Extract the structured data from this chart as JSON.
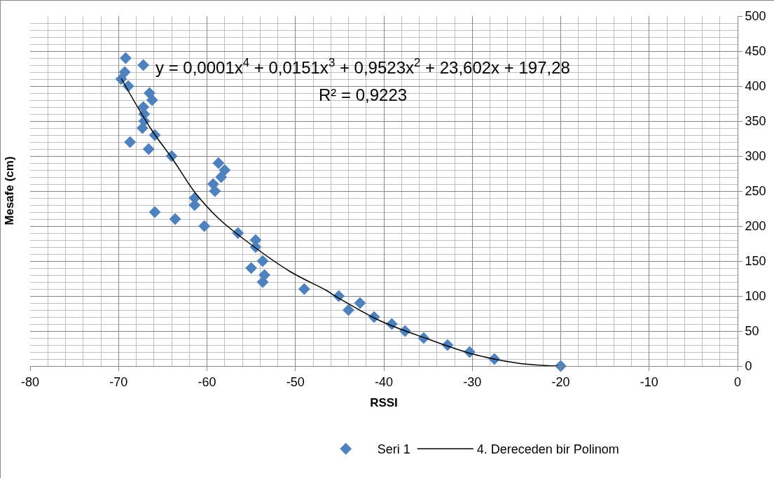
{
  "chart_data": {
    "type": "scatter",
    "xlabel": "RSSI",
    "ylabel": "Mesafe (cm)",
    "annotations": [
      "y = 0,0001x$^{4}$ + 0,0151x$^{3}$ + 0,9523x$^{2}$ + 23,602x + 197,28",
      "R² = 0,9223"
    ],
    "xlim": [
      -80,
      0
    ],
    "xticks": [
      -80,
      -70,
      -60,
      -50,
      -40,
      -30,
      -20,
      -10,
      0
    ],
    "ylim": [
      0,
      500
    ],
    "yticks": [
      0,
      50,
      100,
      150,
      200,
      250,
      300,
      350,
      400,
      450,
      500
    ],
    "grid": true,
    "legend": "bottom",
    "marker": "diamond",
    "series": [
      {
        "name": "Seri 1",
        "color": "#4f81bd",
        "x": [
          -69.2,
          -67.2,
          -69.3,
          -69.7,
          -68.9,
          -66.5,
          -66.2,
          -67.2,
          -67.1,
          -67.1,
          -67.3,
          -65.9,
          -68.7,
          -66.6,
          -64.0,
          -58.7,
          -58.0,
          -58.4,
          -59.3,
          -59.1,
          -61.4,
          -61.4,
          -65.9,
          -63.6,
          -60.3,
          -56.5,
          -54.5,
          -54.5,
          -53.7,
          -55.0,
          -53.5,
          -53.7,
          -49.0,
          -45.1,
          -44.0,
          -42.7,
          -41.1,
          -39.1,
          -37.6,
          -35.5,
          -32.8,
          -30.3,
          -27.5,
          -20.0
        ],
        "values": [
          440,
          430,
          420,
          410,
          400,
          390,
          380,
          370,
          360,
          350,
          340,
          330,
          320,
          310,
          300,
          290,
          280,
          270,
          260,
          250,
          240,
          230,
          220,
          210,
          200,
          190,
          180,
          170,
          150,
          140,
          130,
          120,
          110,
          100,
          80,
          90,
          70,
          60,
          50,
          40,
          30,
          20,
          10,
          0
        ]
      },
      {
        "name": "4. Dereceden bir Polinom",
        "color": "#000000",
        "type": "line",
        "marker": "none",
        "x": [
          -69.7,
          -66.4,
          -63.8,
          -61.3,
          -58.7,
          -55.8,
          -50.6,
          -46.5,
          -45.5,
          -40.3,
          -35.1,
          -29.9,
          -24.8,
          -20.35
        ],
        "values": [
          411,
          340,
          294,
          247,
          211,
          181,
          135,
          108,
          100,
          64,
          39,
          17,
          4,
          0
        ]
      }
    ]
  }
}
